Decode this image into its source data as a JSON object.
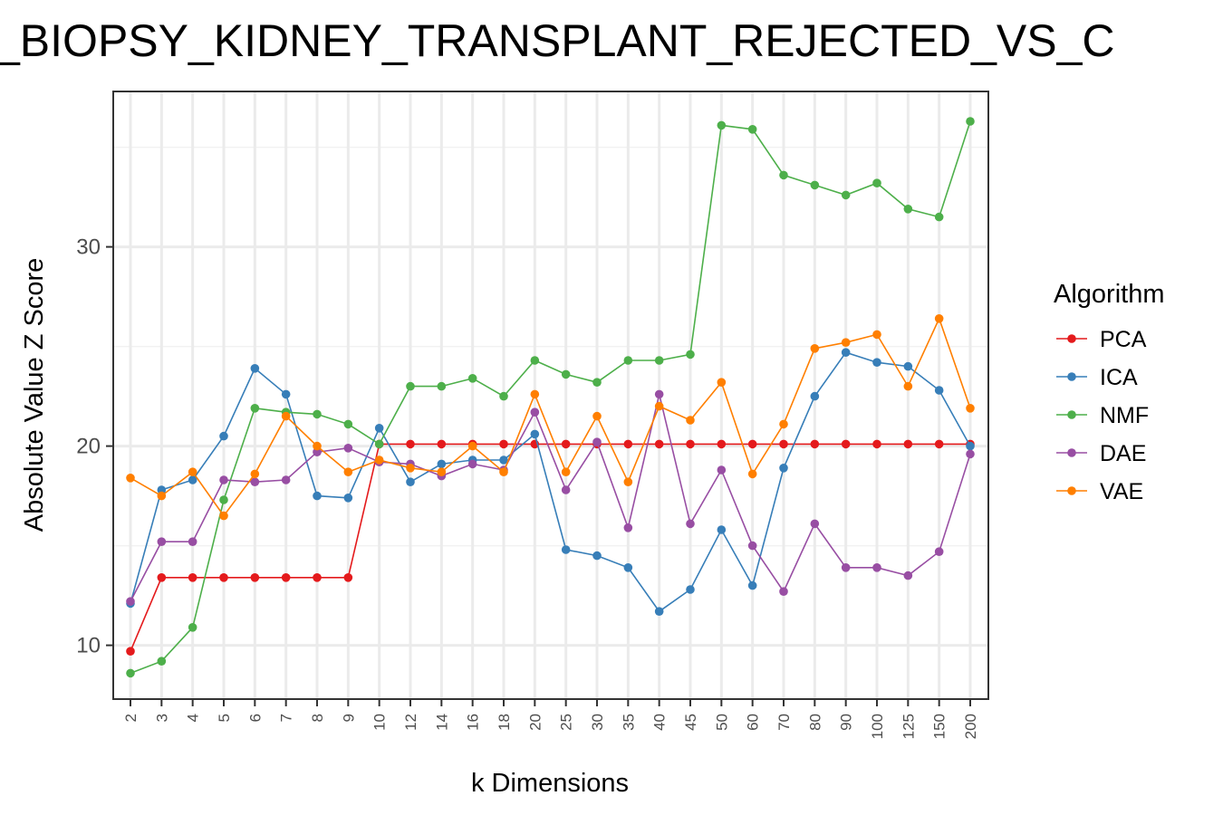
{
  "chart_data": {
    "type": "line",
    "title": "_BIOPSY_KIDNEY_TRANSPLANT_REJECTED_VS_C",
    "xlabel": "k Dimensions",
    "ylabel": "Absolute Value Z Score",
    "categories": [
      "2",
      "3",
      "4",
      "5",
      "6",
      "7",
      "8",
      "9",
      "10",
      "12",
      "14",
      "16",
      "18",
      "20",
      "25",
      "30",
      "35",
      "40",
      "45",
      "50",
      "60",
      "70",
      "80",
      "90",
      "100",
      "125",
      "150",
      "200"
    ],
    "ylim": [
      7.3,
      37.8
    ],
    "yticks": [
      "10",
      "20",
      "30"
    ],
    "grid": true,
    "legend": {
      "title": "Algorithm",
      "position": "right"
    },
    "series": [
      {
        "name": "PCA",
        "color": "#e41a1c",
        "values": [
          9.7,
          13.4,
          13.4,
          13.4,
          13.4,
          13.4,
          13.4,
          13.4,
          20.1,
          20.1,
          20.1,
          20.1,
          20.1,
          20.1,
          20.1,
          20.1,
          20.1,
          20.1,
          20.1,
          20.1,
          20.1,
          20.1,
          20.1,
          20.1,
          20.1,
          20.1,
          20.1,
          20.1
        ]
      },
      {
        "name": "ICA",
        "color": "#377eb8",
        "values": [
          12.1,
          17.8,
          18.3,
          20.5,
          23.9,
          22.6,
          17.5,
          17.4,
          20.9,
          18.2,
          19.1,
          19.3,
          19.3,
          20.6,
          14.8,
          14.5,
          13.9,
          11.7,
          12.8,
          15.8,
          13.0,
          18.9,
          22.5,
          24.7,
          24.2,
          24.0,
          22.8,
          20.0
        ]
      },
      {
        "name": "NMF",
        "color": "#4daf4a",
        "values": [
          8.6,
          9.2,
          10.9,
          17.3,
          21.9,
          21.7,
          21.6,
          21.1,
          20.1,
          23.0,
          23.0,
          23.4,
          22.5,
          24.3,
          23.6,
          23.2,
          24.3,
          24.3,
          24.6,
          36.1,
          35.9,
          33.6,
          33.1,
          32.6,
          33.2,
          31.9,
          31.5,
          36.3
        ]
      },
      {
        "name": "DAE",
        "color": "#984ea3",
        "values": [
          12.2,
          15.2,
          15.2,
          18.3,
          18.2,
          18.3,
          19.7,
          19.9,
          19.2,
          19.1,
          18.5,
          19.1,
          18.8,
          21.7,
          17.8,
          20.2,
          15.9,
          22.6,
          16.1,
          18.8,
          15.0,
          12.7,
          16.1,
          13.9,
          13.9,
          13.5,
          14.7,
          19.6
        ]
      },
      {
        "name": "VAE",
        "color": "#ff7f00",
        "values": [
          18.4,
          17.5,
          18.7,
          16.5,
          18.6,
          21.5,
          20.0,
          18.7,
          19.3,
          18.9,
          18.7,
          20.0,
          18.7,
          22.6,
          18.7,
          21.5,
          18.2,
          22.0,
          21.3,
          23.2,
          18.6,
          21.1,
          24.9,
          25.2,
          25.6,
          23.0,
          26.4,
          21.9
        ]
      }
    ]
  }
}
